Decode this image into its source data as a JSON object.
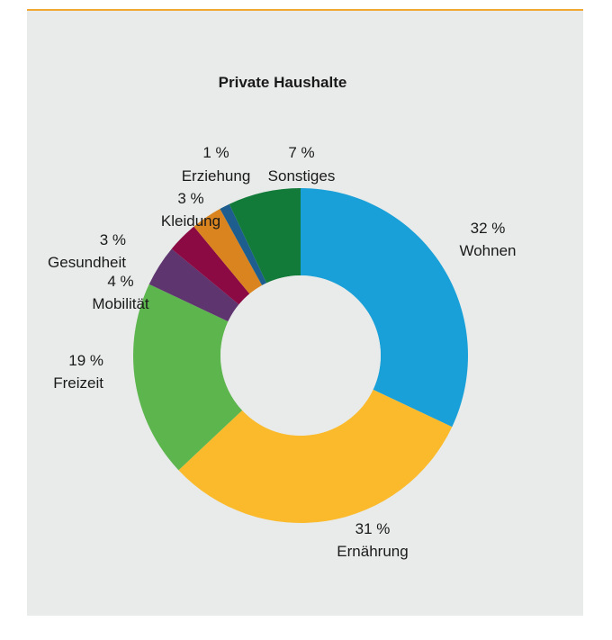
{
  "chart_data": {
    "type": "donut",
    "title": "Private Haushalte",
    "unit": "%",
    "slices": [
      {
        "label": "Wohnen",
        "value_text": "32 %",
        "value": 32,
        "color": "#1aa0d8"
      },
      {
        "label": "Ernährung",
        "value_text": "31 %",
        "value": 31,
        "color": "#fbba2b"
      },
      {
        "label": "Freizeit",
        "value_text": "19 %",
        "value": 19,
        "color": "#5db54e"
      },
      {
        "label": "Mobilität",
        "value_text": "4 %",
        "value": 4,
        "color": "#5f356f"
      },
      {
        "label": "Gesundheit",
        "value_text": "3 %",
        "value": 3,
        "color": "#8b0a43"
      },
      {
        "label": "Kleidung",
        "value_text": "3 %",
        "value": 3,
        "color": "#d9841e"
      },
      {
        "label": "Erziehung",
        "value_text": "1 %",
        "value": 1,
        "color": "#1d5e8f"
      },
      {
        "label": "Sonstiges",
        "value_text": "7 %",
        "value": 7,
        "color": "#137b3a"
      }
    ]
  },
  "colors": {
    "accent_rule": "#f0a832",
    "panel_background": "#e8ebe9",
    "donut_hole": "#e8ebe9",
    "text": "#1a1a1a"
  }
}
